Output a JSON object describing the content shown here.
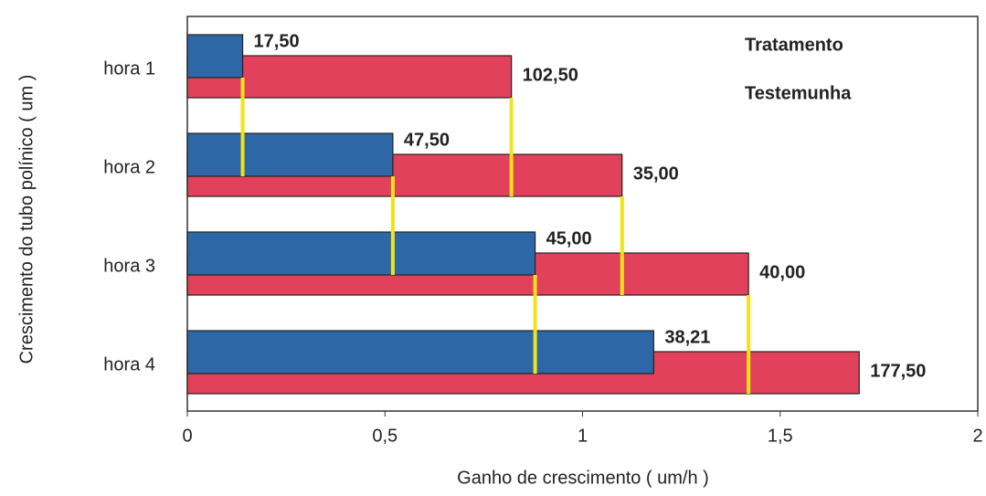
{
  "chart_data": {
    "type": "bar",
    "orientation": "horizontal",
    "categories": [
      "hora 1",
      "hora 2",
      "hora 3",
      "hora 4"
    ],
    "series": [
      {
        "name": "Tratamento",
        "color": "#e2415b",
        "values": [
          0.82,
          1.1,
          1.42,
          1.7
        ],
        "annotations": [
          "102,50",
          "35,00",
          "40,00",
          "177,50"
        ]
      },
      {
        "name": "Testemunha",
        "color": "#2e67a6",
        "values": [
          0.14,
          0.52,
          0.88,
          1.18
        ],
        "annotations": [
          "17,50",
          "47,50",
          "45,00",
          "38,21"
        ]
      }
    ],
    "xlim": [
      0,
      2
    ],
    "xticks": [
      0,
      {
        "value": 0.5,
        "label": "0,5"
      },
      1,
      {
        "value": 1.5,
        "label": "1,5"
      },
      2
    ],
    "xlabel": "Ganho de crescimento ( um/h )",
    "ylabel": "Crescimento do tubo polínico ( um )",
    "connector_color": "#f2e21a",
    "legend": "top-right"
  }
}
